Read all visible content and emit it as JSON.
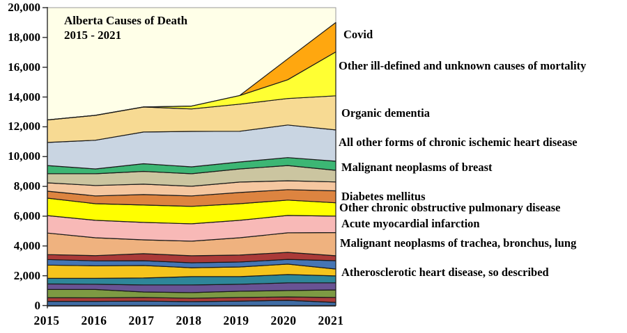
{
  "chart_data": {
    "type": "area",
    "stacked": true,
    "title": "Alberta Causes of Death",
    "subtitle": "2015 - 2021",
    "years": [
      2015,
      2016,
      2017,
      2018,
      2019,
      2020,
      2021
    ],
    "x_tick_labels": [
      "2015",
      "2016",
      "2017",
      "2018",
      "2019",
      "2020",
      "2021"
    ],
    "y_axis": {
      "min": 0,
      "max": 20000,
      "tick_step": 2000,
      "tick_labels": [
        "0",
        "2,000",
        "4,000",
        "6,000",
        "8,000",
        "10,000",
        "12,000",
        "14,000",
        "16,000",
        "18,000",
        "20,000"
      ]
    },
    "plot_background": "#ffffe8",
    "outline_color": "#1a1a1a",
    "axis_color": "#2a2a2a",
    "plot_border_color": "#9a9a9a",
    "legend_position": "right-margin-labels",
    "grid": false,
    "series": [
      {
        "name": "",
        "color": "#3f6ca5",
        "values": [
          280,
          280,
          300,
          260,
          300,
          350,
          210
        ]
      },
      {
        "name": "",
        "color": "#a93c3a",
        "values": [
          250,
          240,
          240,
          230,
          240,
          230,
          330
        ]
      },
      {
        "name": "",
        "color": "#7d9a43",
        "values": [
          550,
          560,
          370,
          380,
          420,
          430,
          510
        ]
      },
      {
        "name": "",
        "color": "#695394",
        "values": [
          370,
          350,
          470,
          510,
          470,
          510,
          470
        ]
      },
      {
        "name": "",
        "color": "#2e8699",
        "values": [
          380,
          400,
          470,
          560,
          510,
          560,
          470
        ]
      },
      {
        "name": "Atherosclerotic heart disease, so described",
        "color": "#f5c41c",
        "values": [
          885,
          840,
          840,
          600,
          650,
          700,
          460
        ]
      },
      {
        "name": "",
        "color": "#4575b4",
        "values": [
          375,
          330,
          320,
          330,
          330,
          320,
          560
        ]
      },
      {
        "name": "",
        "color": "#ab3a38",
        "values": [
          330,
          350,
          470,
          470,
          470,
          470,
          330
        ]
      },
      {
        "name": "Malignant neoplasms of trachea, bronchus, lung",
        "color": "#efb27f",
        "values": [
          1450,
          1200,
          930,
          980,
          1160,
          1310,
          1560
        ]
      },
      {
        "name": "Acute myocardial infarction",
        "color": "#f8b9b7",
        "values": [
          1170,
          1170,
          1170,
          1170,
          1170,
          1170,
          1100
        ]
      },
      {
        "name": "Other chronic obstructive pulmonary disease",
        "color": "#ffff00",
        "values": [
          1170,
          1120,
          1170,
          1170,
          1120,
          1030,
          900
        ]
      },
      {
        "name": "Diabetes mellitus",
        "color": "#dd8440",
        "values": [
          470,
          520,
          700,
          700,
          750,
          700,
          800
        ]
      },
      {
        "name": "",
        "color": "#f5c7a0",
        "values": [
          560,
          700,
          700,
          650,
          700,
          600,
          600
        ]
      },
      {
        "name": "",
        "color": "#cbc5a0",
        "values": [
          610,
          790,
          860,
          840,
          880,
          1020,
          780
        ]
      },
      {
        "name": "Malignant neoplasms of breast",
        "color": "#3cb674",
        "values": [
          550,
          320,
          510,
          460,
          470,
          530,
          610
        ]
      },
      {
        "name": "All other forms of chronic  ischemic heart disease",
        "color": "#c9d5e2",
        "values": [
          1550,
          1930,
          2130,
          2380,
          2060,
          2190,
          2100
        ]
      },
      {
        "name": "Organic dementia",
        "color": "#f7da93",
        "values": [
          1510,
          1670,
          1680,
          1510,
          1820,
          1780,
          2290
        ]
      },
      {
        "name": "Other ill-defined and unknown causes of mortality",
        "color": "#ffff33",
        "values": [
          0,
          0,
          0,
          190,
          580,
          1260,
          2950
        ]
      },
      {
        "name": "Covid",
        "color": "#ffa70f",
        "values": [
          0,
          0,
          0,
          0,
          0,
          1400,
          1970
        ]
      }
    ],
    "totals_by_year": [
      12460,
      12770,
      13330,
      13390,
      14100,
      16560,
      19000
    ]
  }
}
